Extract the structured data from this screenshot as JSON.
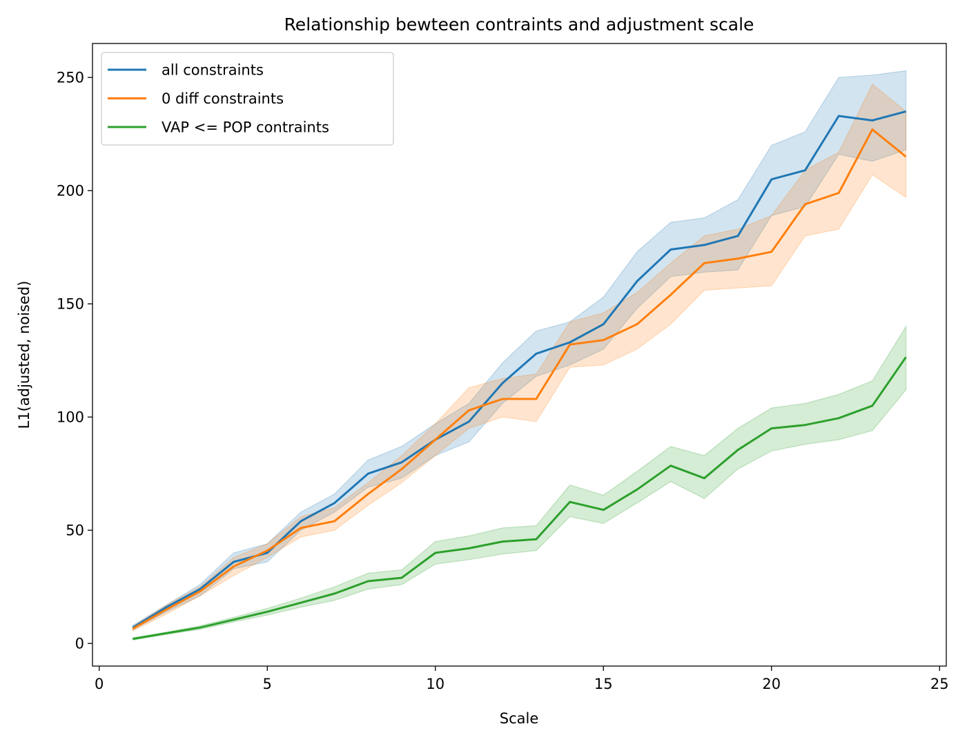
{
  "chart_data": {
    "type": "line",
    "title": "Relationship bewteen contraints and adjustment scale",
    "xlabel": "Scale",
    "ylabel": "L1(adjusted, noised)",
    "xlim": [
      -0.2,
      25.2
    ],
    "ylim": [
      -10,
      265
    ],
    "xticks": [
      0,
      5,
      10,
      15,
      20,
      25
    ],
    "yticks": [
      0,
      50,
      100,
      150,
      200,
      250
    ],
    "grid": false,
    "legend_position": "top-left",
    "x": [
      1,
      2,
      3,
      4,
      5,
      6,
      7,
      8,
      9,
      10,
      11,
      12,
      13,
      14,
      15,
      16,
      17,
      18,
      19,
      20,
      21,
      22,
      23,
      24
    ],
    "series": [
      {
        "name": "all constraints",
        "color": "#1f77b4",
        "values": [
          7,
          16,
          24,
          36,
          40,
          54,
          62,
          75,
          80,
          90,
          98,
          115,
          128,
          133,
          141,
          160,
          174,
          176,
          180,
          205,
          209,
          233,
          231,
          235
        ],
        "lower": [
          6,
          14,
          21,
          33,
          36,
          50,
          58,
          69,
          73,
          83,
          89,
          106,
          118,
          123,
          130,
          148,
          162,
          164,
          165,
          189,
          193,
          216,
          213,
          218
        ],
        "upper": [
          8,
          17,
          26,
          40,
          44,
          58,
          66,
          81,
          87,
          97,
          106,
          124,
          138,
          142,
          153,
          173,
          186,
          188,
          196,
          220,
          226,
          250,
          251,
          253
        ]
      },
      {
        "name": "0 diff constraints",
        "color": "#ff7f0e",
        "values": [
          6.5,
          15,
          23,
          34,
          41,
          51,
          54,
          66,
          77,
          90,
          103,
          108,
          108,
          132,
          134,
          141,
          154,
          168,
          170,
          173,
          194,
          199,
          227,
          215
        ],
        "lower": [
          5.5,
          13,
          21,
          30,
          38,
          47,
          50,
          61,
          71,
          83,
          95,
          100,
          98,
          122,
          123,
          130,
          141,
          156,
          157,
          158,
          180,
          183,
          207,
          197
        ],
        "upper": [
          7.5,
          17,
          25,
          38,
          44,
          56,
          60,
          71,
          83,
          97,
          113,
          117,
          119,
          142,
          146,
          155,
          168,
          180,
          183,
          189,
          209,
          217,
          247,
          235
        ]
      },
      {
        "name": "VAP <= POP contraints",
        "color": "#2ca02c",
        "values": [
          2,
          4.5,
          7,
          10.5,
          14,
          18,
          22,
          27.5,
          29,
          40,
          42,
          45,
          46,
          62.5,
          59,
          68,
          78.5,
          73,
          85.5,
          95,
          96.5,
          99.5,
          105,
          126.5
        ],
        "lower": [
          1.5,
          4,
          6.2,
          9.5,
          12.5,
          16,
          19,
          24,
          26,
          35,
          37,
          39.5,
          41,
          56,
          53,
          62,
          71.5,
          64,
          77,
          85,
          88,
          90,
          94,
          112
        ],
        "upper": [
          2.5,
          5,
          7.8,
          11.5,
          15.5,
          20,
          25,
          31,
          32.5,
          45,
          47.5,
          51,
          52,
          70,
          65.5,
          76,
          87,
          83,
          95,
          104,
          106,
          110,
          116,
          140
        ]
      }
    ]
  }
}
